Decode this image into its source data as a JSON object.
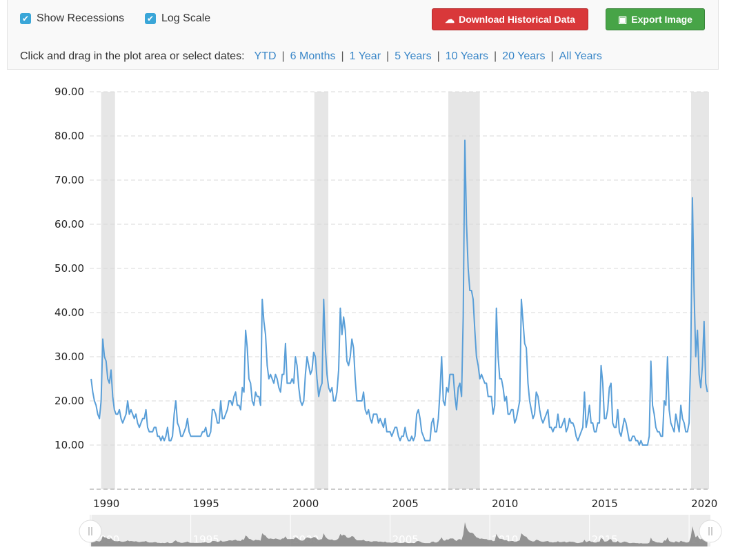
{
  "controls": {
    "show_recessions": {
      "label": "Show Recessions",
      "checked": true
    },
    "log_scale": {
      "label": "Log Scale",
      "checked": true
    },
    "download_label": "Download Historical Data",
    "export_label": "Export Image",
    "range_prompt": "Click and drag in the plot area or select dates:",
    "ranges": [
      "YTD",
      "6 Months",
      "1 Year",
      "5 Years",
      "10 Years",
      "20 Years",
      "All Years"
    ]
  },
  "colors": {
    "line": "#5a9fd8",
    "recession": "#e6e6e6",
    "download": "#d9383a",
    "export": "#47a447",
    "navigator": "#888888"
  },
  "chart_data": {
    "type": "line",
    "x_start": "1990-01",
    "x_step": "month",
    "xlim": [
      1990.0,
      2021.0
    ],
    "ylim": [
      0,
      90
    ],
    "y_ticks": [
      "10.00",
      "20.00",
      "30.00",
      "40.00",
      "50.00",
      "60.00",
      "70.00",
      "80.00",
      "90.00"
    ],
    "x_ticks": [
      "1990",
      "1995",
      "2000",
      "2005",
      "2010",
      "2015",
      "2020"
    ],
    "grid": true,
    "recessions": [
      [
        1990.5,
        1991.2
      ],
      [
        2001.2,
        2001.9
      ],
      [
        2007.92,
        2009.5
      ],
      [
        2020.1,
        2021.0
      ]
    ],
    "values": [
      25,
      22,
      20,
      19,
      17,
      16,
      20,
      34,
      30,
      29,
      25,
      24,
      27,
      21,
      18,
      17,
      17,
      18,
      16,
      15,
      16,
      17,
      20,
      17,
      18,
      17,
      16,
      17,
      15,
      14,
      15,
      16,
      16,
      18,
      14,
      13,
      13,
      13,
      14,
      14,
      12,
      12,
      11,
      12,
      11,
      12,
      14,
      11,
      11,
      12,
      17,
      20,
      15,
      14,
      12,
      12,
      13,
      14,
      16,
      13,
      12,
      12,
      12,
      12,
      12,
      12,
      12,
      13,
      13,
      14,
      12,
      12,
      13,
      18,
      18,
      17,
      15,
      15,
      20,
      16,
      16,
      17,
      18,
      20,
      20,
      19,
      21,
      22,
      19,
      19,
      18,
      23,
      22,
      36,
      32,
      25,
      24,
      20,
      19,
      22,
      21,
      21,
      19,
      43,
      38,
      35,
      28,
      25,
      26,
      25,
      24,
      26,
      25,
      23,
      22,
      26,
      26,
      33,
      24,
      24,
      24,
      25,
      24,
      30,
      28,
      23,
      20,
      19,
      20,
      26,
      30,
      28,
      26,
      27,
      31,
      30,
      25,
      21,
      23,
      24,
      43,
      32,
      26,
      23,
      22,
      23,
      20,
      20,
      22,
      27,
      41,
      35,
      39,
      36,
      29,
      28,
      30,
      34,
      32,
      25,
      20,
      20,
      20,
      20,
      22,
      18,
      17,
      18,
      16,
      15,
      17,
      17,
      17,
      15,
      16,
      15,
      14,
      16,
      13,
      13,
      13,
      12,
      13,
      14,
      14,
      12,
      11,
      12,
      12,
      14,
      12,
      11,
      11,
      12,
      11,
      12,
      17,
      18,
      16,
      13,
      12,
      11,
      11,
      11,
      11,
      15,
      16,
      13,
      13,
      16,
      22,
      30,
      20,
      19,
      23,
      22,
      26,
      26,
      26,
      21,
      18,
      23,
      24,
      21,
      39,
      79,
      60,
      50,
      45,
      45,
      43,
      36,
      30,
      28,
      25,
      26,
      25,
      24,
      24,
      21,
      21,
      21,
      17,
      19,
      41,
      30,
      25,
      25,
      23,
      20,
      21,
      17,
      17,
      18,
      18,
      15,
      16,
      18,
      20,
      43,
      38,
      33,
      32,
      24,
      20,
      18,
      16,
      17,
      22,
      21,
      18,
      16,
      15,
      16,
      17,
      18,
      14,
      14,
      13,
      14,
      14,
      17,
      14,
      14,
      15,
      16,
      13,
      14,
      16,
      15,
      15,
      14,
      12,
      11,
      12,
      13,
      14,
      22,
      14,
      16,
      19,
      15,
      15,
      13,
      13,
      15,
      15,
      28,
      24,
      16,
      16,
      18,
      23,
      24,
      15,
      14,
      14,
      18,
      13,
      12,
      14,
      16,
      15,
      13,
      11,
      11,
      12,
      12,
      11,
      11,
      10,
      11,
      10,
      10,
      10,
      10,
      12,
      29,
      19,
      17,
      14,
      13,
      13,
      12,
      12,
      20,
      19,
      30,
      18,
      15,
      14,
      13,
      17,
      15,
      13,
      19,
      16,
      15,
      13,
      13,
      15,
      30,
      66,
      45,
      30,
      36,
      26,
      23,
      28,
      38,
      24,
      22
    ]
  }
}
